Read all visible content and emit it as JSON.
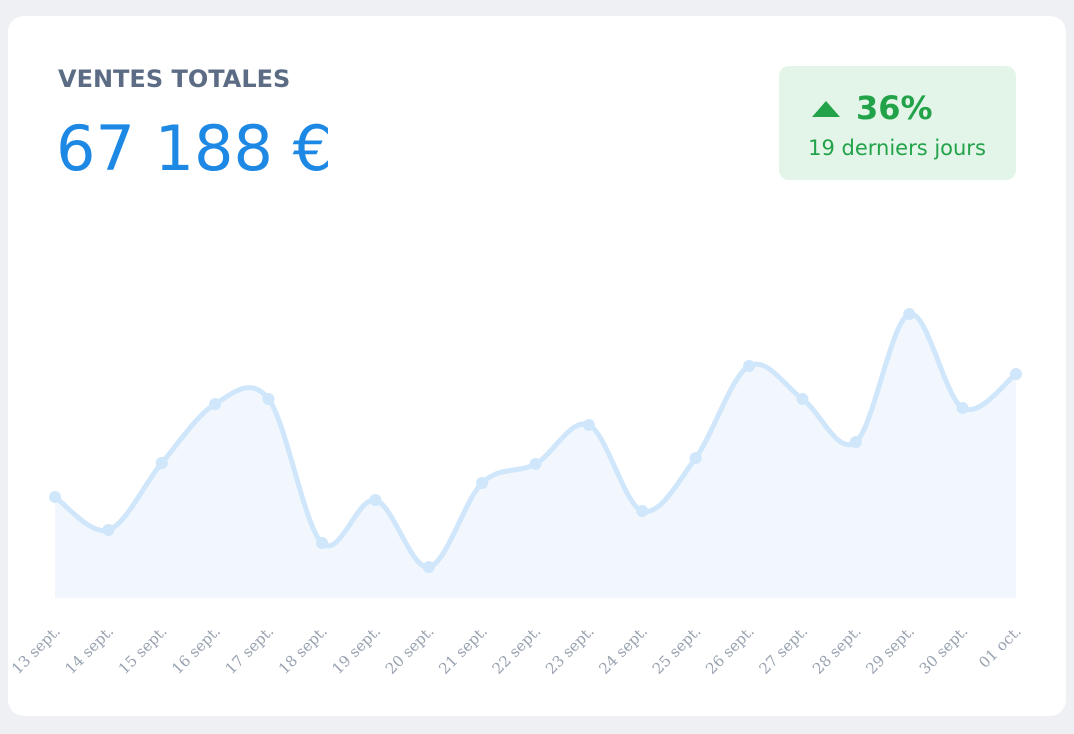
{
  "header": {
    "title": "VENTES TOTALES",
    "total": "67 188 €"
  },
  "badge": {
    "change": "36%",
    "period": "19 derniers jours"
  },
  "chart_data": {
    "type": "area",
    "categories": [
      "13 sept.",
      "14 sept.",
      "15 sept.",
      "16 sept.",
      "17 sept.",
      "18 sept.",
      "19 sept.",
      "20 sept.",
      "21 sept.",
      "22 sept.",
      "23 sept.",
      "24 sept.",
      "25 sept.",
      "26 sept.",
      "27 sept.",
      "28 sept.",
      "29 sept.",
      "30 sept.",
      "01 oct."
    ],
    "values": [
      101,
      68,
      135,
      194,
      199,
      55,
      98,
      31,
      115,
      134,
      173,
      87,
      140,
      232,
      199,
      156,
      284,
      190,
      224
    ],
    "ylim": [
      0,
      300
    ],
    "color": "#cfe6fb"
  }
}
